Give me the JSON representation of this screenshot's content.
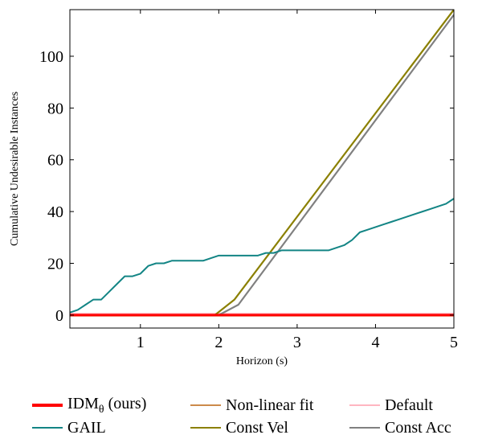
{
  "chart_data": {
    "type": "line",
    "xlabel": "Horizon (s)",
    "ylabel": "Cumulative Undesirable Instances",
    "xlim": [
      0.1,
      5
    ],
    "ylim": [
      -5,
      118
    ],
    "xticks": [
      1,
      2,
      3,
      4,
      5
    ],
    "yticks": [
      0,
      20,
      40,
      60,
      80,
      100
    ],
    "grid": false,
    "legend_position": "bottom",
    "series": [
      {
        "name": "IDMθ (ours)",
        "color": "#ff0000",
        "width": 3,
        "x": [
          0.1,
          5.0
        ],
        "y": [
          0,
          0
        ]
      },
      {
        "name": "Non-linear fit",
        "color": "#cc8a4a",
        "width": 1.6,
        "x": [
          0.1,
          5.0
        ],
        "y": [
          -0.3,
          -0.3
        ]
      },
      {
        "name": "Default",
        "color": "#ffb6c1",
        "width": 1.6,
        "x": [
          0.1,
          5.0
        ],
        "y": [
          0.6,
          0.6
        ]
      },
      {
        "name": "GAIL",
        "color": "#138585",
        "width": 2,
        "x": [
          0.1,
          0.2,
          0.3,
          0.4,
          0.5,
          0.6,
          0.7,
          0.8,
          0.9,
          1.0,
          1.1,
          1.2,
          1.3,
          1.4,
          1.5,
          1.6,
          1.7,
          1.8,
          1.9,
          2.0,
          2.1,
          2.2,
          2.3,
          2.4,
          2.5,
          2.6,
          2.7,
          2.8,
          2.9,
          3.0,
          3.1,
          3.2,
          3.3,
          3.4,
          3.5,
          3.6,
          3.7,
          3.8,
          3.9,
          4.0,
          4.1,
          4.2,
          4.3,
          4.4,
          4.5,
          4.6,
          4.7,
          4.8,
          4.9,
          5.0
        ],
        "y": [
          1,
          2,
          4,
          6,
          6,
          9,
          12,
          15,
          15,
          16,
          19,
          20,
          20,
          21,
          21,
          21,
          21,
          21,
          22,
          23,
          23,
          23,
          23,
          23,
          23,
          24,
          24,
          25,
          25,
          25,
          25,
          25,
          25,
          25,
          26,
          27,
          29,
          32,
          33,
          34,
          35,
          36,
          37,
          38,
          39,
          40,
          41,
          42,
          43,
          45
        ]
      },
      {
        "name": "Const Vel",
        "color": "#8b8000",
        "width": 2.2,
        "x": [
          0.1,
          1.95,
          2.2,
          5.0
        ],
        "y": [
          0,
          0,
          6,
          118
        ]
      },
      {
        "name": "Const Acc",
        "color": "#808080",
        "width": 2.2,
        "x": [
          0.1,
          2.0,
          2.25,
          5.0
        ],
        "y": [
          0,
          0,
          4,
          116
        ]
      }
    ]
  },
  "legend": {
    "row1": [
      {
        "label": "IDM",
        "sub": "θ",
        "suffix": " (ours)"
      },
      {
        "label": "Non-linear fit"
      },
      {
        "label": "Default"
      }
    ],
    "row2": [
      {
        "label": "GAIL"
      },
      {
        "label": "Const Vel"
      },
      {
        "label": "Const Acc"
      }
    ]
  }
}
